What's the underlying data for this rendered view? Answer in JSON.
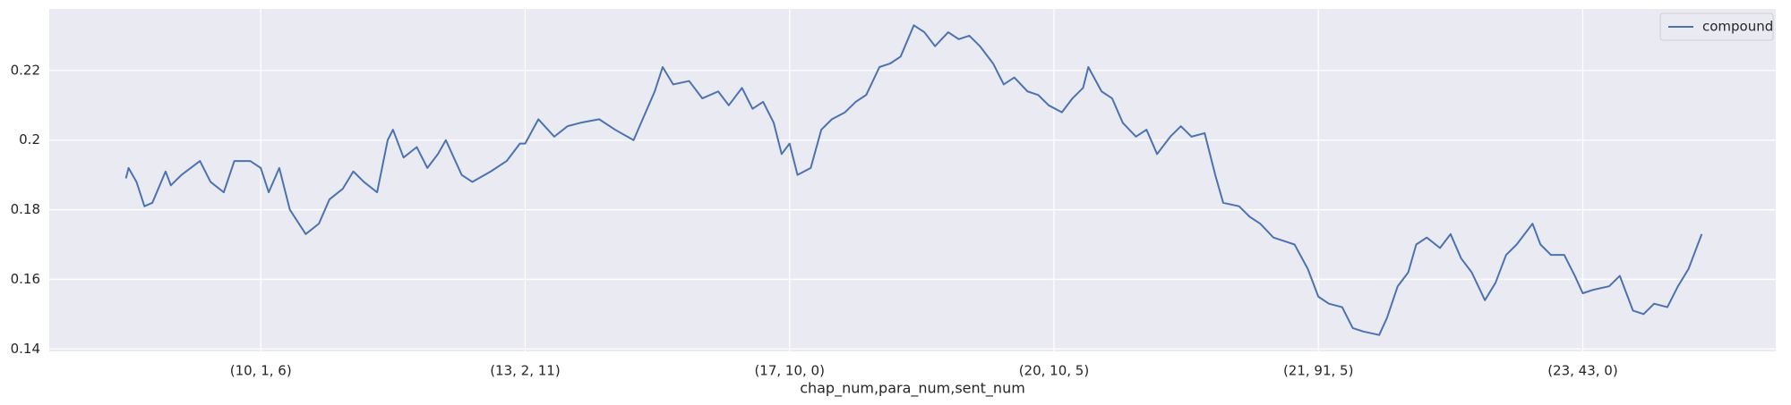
{
  "chart_data": {
    "type": "line",
    "x_label": "chap_num,para_num,sent_num",
    "x": [
      490,
      500,
      530,
      560,
      590,
      640,
      660,
      700,
      770,
      810,
      860,
      900,
      960,
      1000,
      1030,
      1070,
      1110,
      1170,
      1220,
      1260,
      1310,
      1350,
      1390,
      1440,
      1480,
      1500,
      1540,
      1590,
      1630,
      1670,
      1700,
      1760,
      1800,
      1870,
      1930,
      1980,
      2000,
      2050,
      2110,
      2160,
      2210,
      2280,
      2340,
      2410,
      2450,
      2490,
      2520,
      2560,
      2620,
      2670,
      2730,
      2770,
      2820,
      2860,
      2900,
      2940,
      2970,
      3000,
      3030,
      3080,
      3120,
      3160,
      3210,
      3250,
      3290,
      3340,
      3380,
      3420,
      3470,
      3510,
      3550,
      3600,
      3640,
      3680,
      3720,
      3770,
      3810,
      3850,
      3900,
      3940,
      3980,
      4030,
      4070,
      4110,
      4130,
      4180,
      4220,
      4260,
      4310,
      4350,
      4390,
      4440,
      4480,
      4520,
      4570,
      4610,
      4640,
      4700,
      4740,
      4780,
      4830,
      4870,
      4910,
      4960,
      5000,
      5040,
      5090,
      5130,
      5170,
      5230,
      5260,
      5300,
      5340,
      5370,
      5410,
      5460,
      5500,
      5540,
      5580,
      5630,
      5670,
      5710,
      5750,
      5810,
      5840,
      5880,
      5930,
      5970,
      6000,
      6040,
      6100,
      6140,
      6190,
      6230,
      6270,
      6320,
      6360,
      6400,
      6450
    ],
    "series": [
      {
        "name": "compound",
        "color": "#4c72b0",
        "values": [
          0.189,
          0.192,
          0.188,
          0.181,
          0.182,
          0.191,
          0.187,
          0.19,
          0.194,
          0.188,
          0.185,
          0.194,
          0.194,
          0.192,
          0.185,
          0.192,
          0.18,
          0.173,
          0.176,
          0.183,
          0.186,
          0.191,
          0.188,
          0.185,
          0.2,
          0.203,
          0.195,
          0.198,
          0.192,
          0.196,
          0.2,
          0.19,
          0.188,
          0.191,
          0.194,
          0.199,
          0.199,
          0.206,
          0.201,
          0.204,
          0.205,
          0.206,
          0.203,
          0.2,
          0.207,
          0.214,
          0.221,
          0.216,
          0.217,
          0.212,
          0.214,
          0.21,
          0.215,
          0.209,
          0.211,
          0.205,
          0.196,
          0.199,
          0.19,
          0.192,
          0.203,
          0.206,
          0.208,
          0.211,
          0.213,
          0.221,
          0.222,
          0.224,
          0.233,
          0.231,
          0.227,
          0.231,
          0.229,
          0.23,
          0.227,
          0.222,
          0.216,
          0.218,
          0.214,
          0.213,
          0.21,
          0.208,
          0.212,
          0.215,
          0.221,
          0.214,
          0.212,
          0.205,
          0.201,
          0.203,
          0.196,
          0.201,
          0.204,
          0.201,
          0.202,
          0.19,
          0.182,
          0.181,
          0.178,
          0.176,
          0.172,
          0.171,
          0.17,
          0.163,
          0.155,
          0.153,
          0.152,
          0.146,
          0.145,
          0.144,
          0.149,
          0.158,
          0.162,
          0.17,
          0.172,
          0.169,
          0.173,
          0.166,
          0.162,
          0.154,
          0.159,
          0.167,
          0.17,
          0.176,
          0.17,
          0.167,
          0.167,
          0.161,
          0.156,
          0.157,
          0.158,
          0.161,
          0.151,
          0.15,
          0.153,
          0.152,
          0.158,
          0.163,
          0.173
        ]
      }
    ],
    "xlim": [
      200,
      6730
    ],
    "xticks": [
      {
        "value": 1000,
        "label": "(10, 1, 6)"
      },
      {
        "value": 2000,
        "label": "(13, 2, 11)"
      },
      {
        "value": 3000,
        "label": "(17, 10, 0)"
      },
      {
        "value": 4000,
        "label": "(20, 10, 5)"
      },
      {
        "value": 5000,
        "label": "(21, 91, 5)"
      },
      {
        "value": 6000,
        "label": "(23, 43, 0)"
      }
    ],
    "ylim": [
      0.1393,
      0.2377
    ],
    "yticks": [
      0.14,
      0.16,
      0.18,
      0.2,
      {
        "value": 0.22,
        "label": "0.22"
      }
    ],
    "grid": true,
    "legend": "upper right",
    "background": "#eaeaf2"
  }
}
